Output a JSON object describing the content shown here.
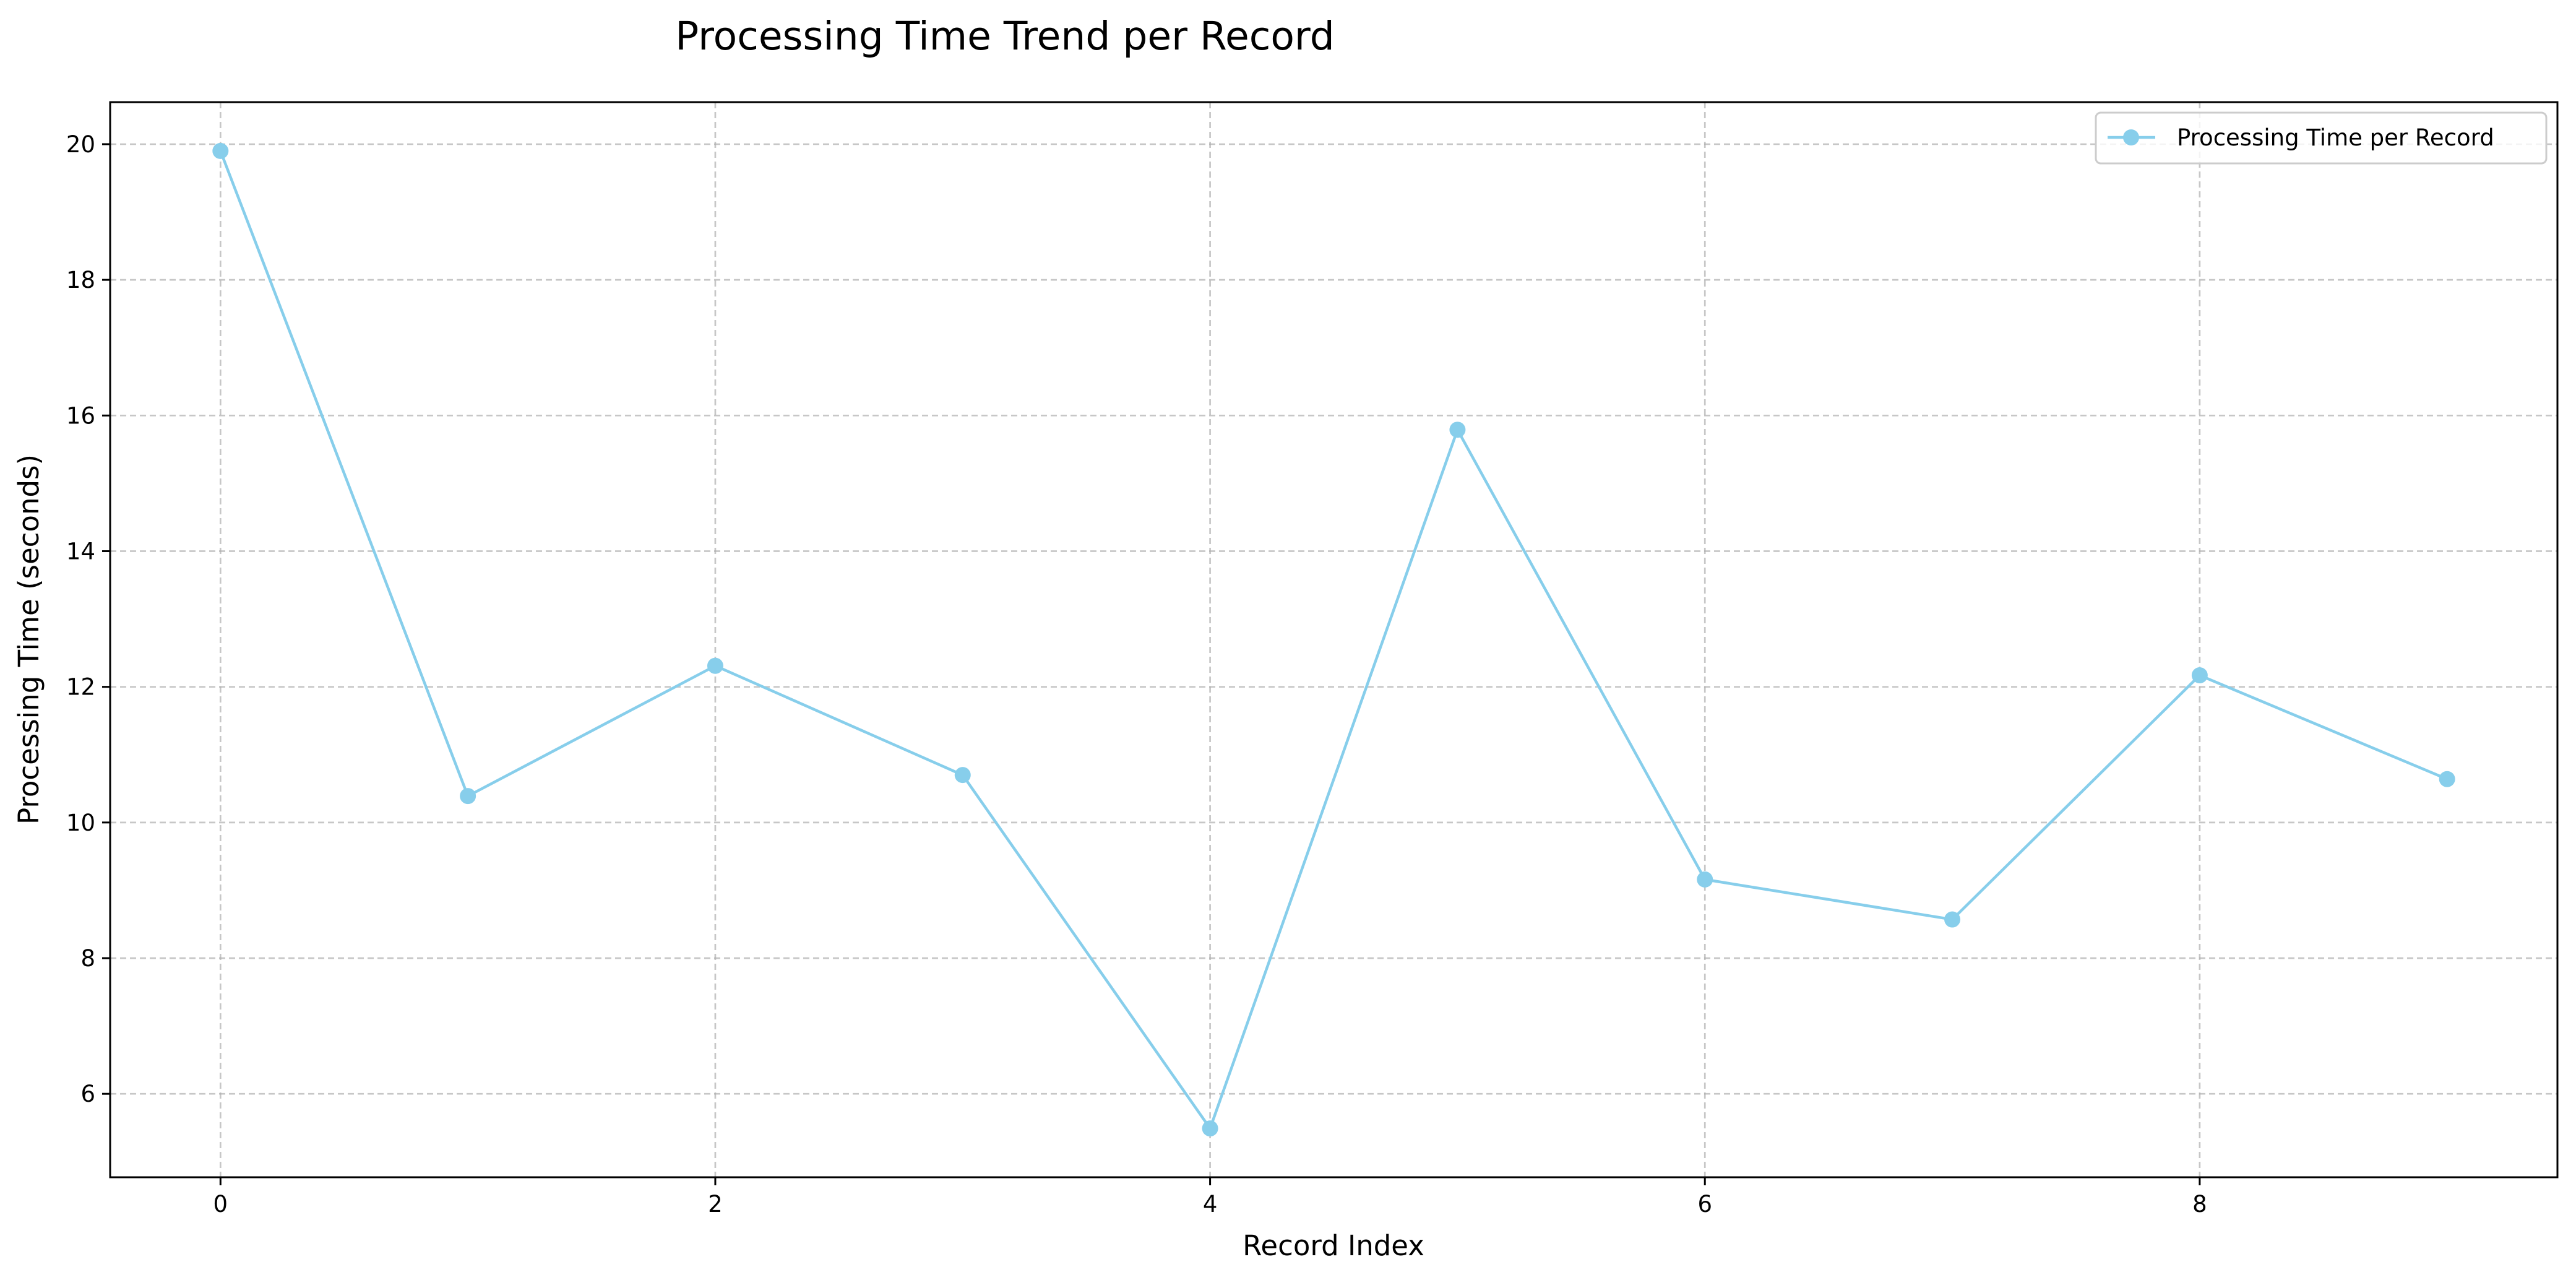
{
  "chart_data": {
    "type": "line",
    "title": "Processing Time Trend per Record",
    "xlabel": "Record Index",
    "ylabel": "Processing Time (seconds)",
    "x": [
      0,
      1,
      2,
      3,
      4,
      5,
      6,
      7,
      8,
      9
    ],
    "series": [
      {
        "name": "Processing Time per Record",
        "values": [
          19.9,
          10.39,
          12.31,
          10.7,
          5.49,
          15.79,
          9.16,
          8.57,
          12.17,
          10.64
        ],
        "color": "#87ceeb",
        "marker": "circle"
      }
    ],
    "xlim": [
      -0.446,
      9.446
    ],
    "ylim": [
      4.77,
      20.62
    ],
    "xticks": [
      0,
      2,
      4,
      6,
      8
    ],
    "yticks": [
      6,
      8,
      10,
      12,
      14,
      16,
      18,
      20
    ],
    "grid": true,
    "legend_position": "top-right"
  }
}
